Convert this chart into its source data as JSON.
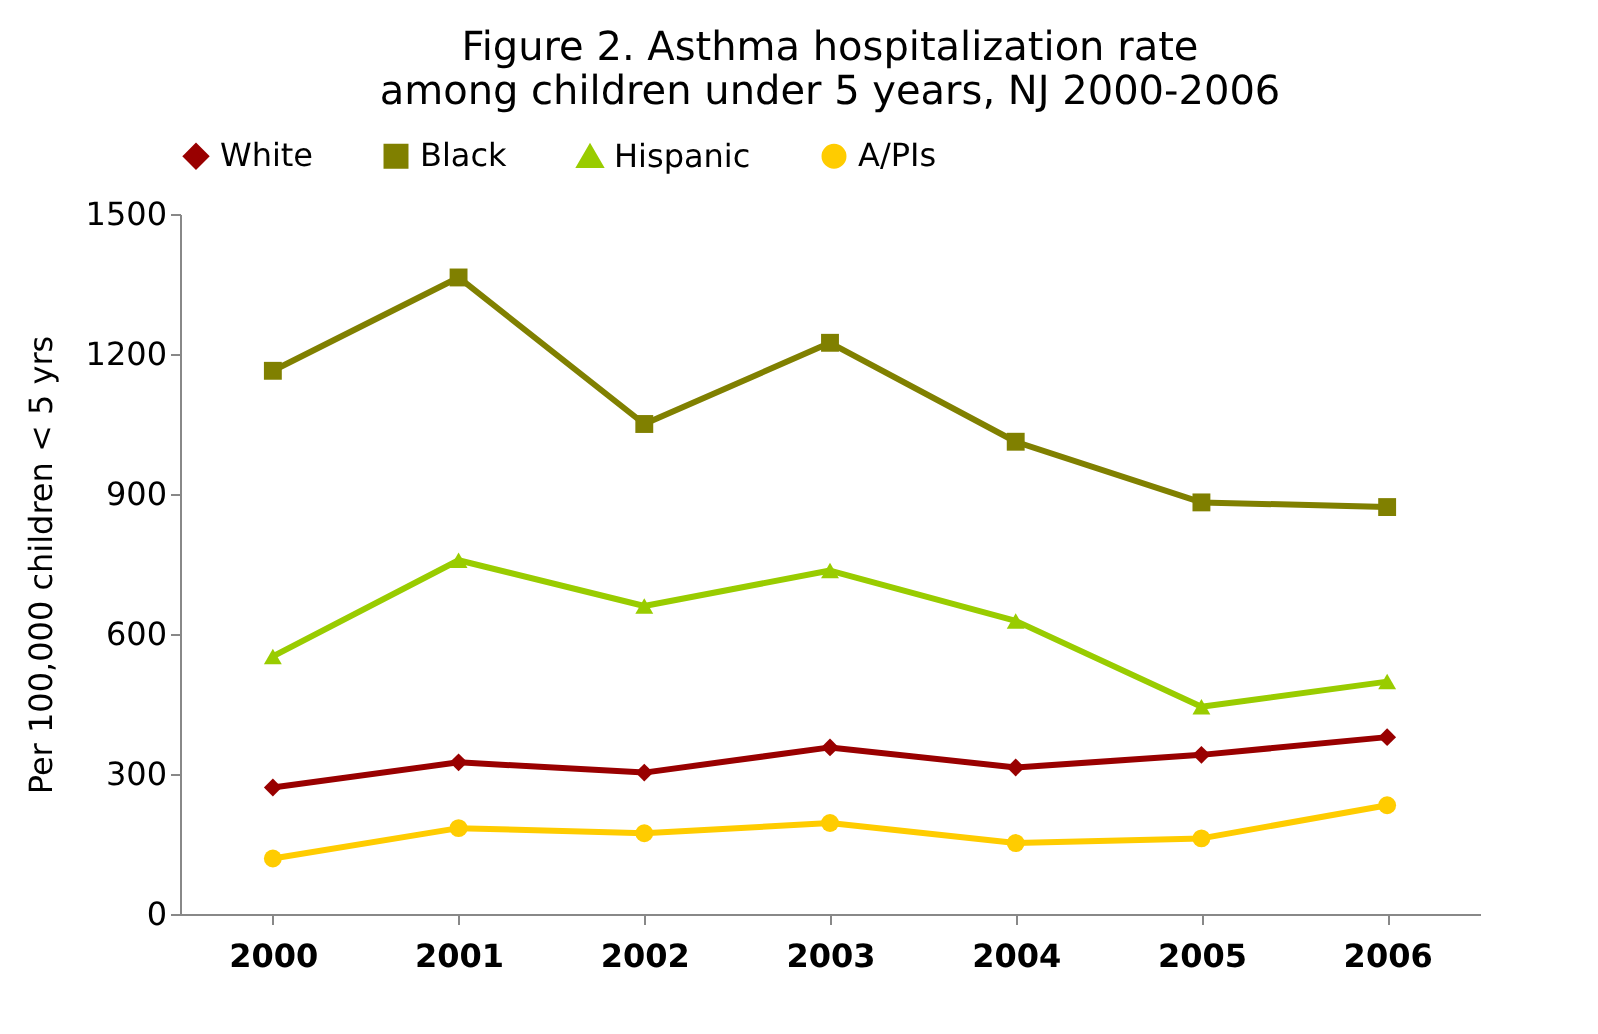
{
  "chart_data": {
    "type": "line",
    "title": "Figure 2. Asthma hospitalization rate among children under 5 years, NJ 2000-2006",
    "ylabel": "Per 100,000 children < 5 yrs",
    "categories": [
      "2000",
      "2001",
      "2002",
      "2003",
      "2004",
      "2005",
      "2006"
    ],
    "series": [
      {
        "name": "White",
        "color": "#990000",
        "marker": "diamond",
        "values": [
          271,
          325,
          303,
          357,
          314,
          341,
          379
        ]
      },
      {
        "name": "Black",
        "color": "#808000",
        "marker": "square",
        "values": [
          1164,
          1364,
          1050,
          1224,
          1012,
          882,
          872
        ]
      },
      {
        "name": "Hispanic",
        "color": "#99cc00",
        "marker": "triangle",
        "values": [
          552,
          758,
          660,
          736,
          628,
          444,
          498
        ]
      },
      {
        "name": "A/PIs",
        "color": "#ffcc00",
        "marker": "circle",
        "values": [
          119,
          184,
          173,
          195,
          152,
          162,
          233
        ]
      }
    ],
    "ylim": [
      0,
      1500
    ],
    "yticks": [
      0,
      300,
      600,
      900,
      1200,
      1500
    ],
    "grid": false,
    "legend": "top",
    "line_style": "solid"
  }
}
